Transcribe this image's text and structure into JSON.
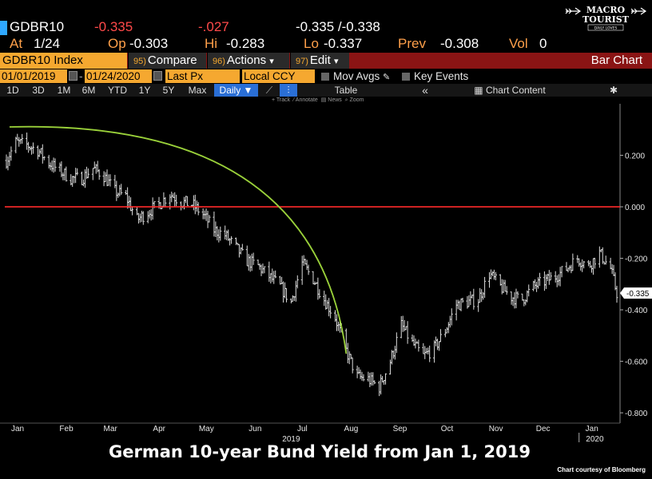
{
  "quote": {
    "ticker": "GDBR10",
    "last": "-0.335",
    "change": "-.027",
    "bid_ask": "-0.335 /-0.338",
    "at_label": "At",
    "at_value": "1/24",
    "open_label": "Op",
    "open_value": "-0.303",
    "high_label": "Hi",
    "high_value": "-0.283",
    "low_label": "Lo",
    "low_value": "-0.337",
    "prev_label": "Prev",
    "prev_value": "-0.308",
    "vol_label": "Vol",
    "vol_value": "0"
  },
  "logo": {
    "line1": "MACRO",
    "line2": "TOURIST",
    "line3": "DAILY LOVES"
  },
  "toolbar": {
    "security": "GDBR10 Index",
    "compare_num": "95)",
    "compare": "Compare",
    "actions_num": "96)",
    "actions": "Actions",
    "edit_num": "97)",
    "edit": "Edit",
    "chart_type": "Bar Chart",
    "caret": "▾"
  },
  "params": {
    "start_date": "01/01/2019",
    "end_date": "01/24/2020",
    "field": "Last Px",
    "currency": "Local CCY",
    "mov_avgs": "Mov Avgs",
    "key_events": "Key Events"
  },
  "ranges": {
    "d1": "1D",
    "d3": "3D",
    "m1": "1M",
    "m6": "6M",
    "ytd": "YTD",
    "y1": "1Y",
    "y5": "5Y",
    "max": "Max",
    "freq": "Daily ▼",
    "table": "Table",
    "chart_content": "Chart Content",
    "back": "«"
  },
  "tools": {
    "track": "Track",
    "annotate": "Annotate",
    "news": "News",
    "zoom": "Zoom"
  },
  "colors": {
    "accent_orange": "#f5a830",
    "toolbar_red": "#8a1414",
    "zero_line": "#ff2a2a",
    "arc": "#9ad13a",
    "bars": "#dddddd",
    "cyan": "#2fa8ff"
  },
  "chart_data": {
    "type": "bar",
    "subtype": "ohlc",
    "title": "German 10-year Bund Yield from Jan 1, 2019",
    "xlabel": "",
    "ylabel": "",
    "ylim": [
      -0.84,
      0.4
    ],
    "y_ticks": [
      "0.200",
      "0.000",
      "-0.200",
      "-0.400",
      "-0.600",
      "-0.800"
    ],
    "y_tick_values": [
      0.2,
      0.0,
      -0.2,
      -0.4,
      -0.6,
      -0.8
    ],
    "last_value_label": "-0.335",
    "last_value": -0.335,
    "x_month_labels": [
      "Jan",
      "Feb",
      "Mar",
      "Apr",
      "May",
      "Jun",
      "Jul",
      "Aug",
      "Sep",
      "Oct",
      "Nov",
      "Dec",
      "Jan"
    ],
    "x_month_starts": [
      "2019-01-01",
      "2019-02-01",
      "2019-03-01",
      "2019-04-01",
      "2019-05-01",
      "2019-06-01",
      "2019-07-01",
      "2019-08-01",
      "2019-09-01",
      "2019-10-01",
      "2019-11-01",
      "2019-12-01",
      "2020-01-01"
    ],
    "x_year_labels": [
      {
        "text": "2019",
        "date": "2019-07-01"
      },
      {
        "text": "2020",
        "date": "2020-01-10"
      }
    ],
    "x_range": [
      "2019-01-01",
      "2020-01-24"
    ],
    "reference_line": {
      "y": 0.0,
      "color": "#ff2a2a"
    },
    "trend_arc": {
      "from": {
        "date": "2019-01-03",
        "y": 0.31
      },
      "to": {
        "date": "2019-08-05",
        "y": -0.57
      },
      "color": "#9ad13a"
    },
    "series": [
      {
        "values": [
          [
            "2019-01-01",
            0.18
          ],
          [
            "2019-01-07",
            0.25
          ],
          [
            "2019-01-14",
            0.24
          ],
          [
            "2019-01-21",
            0.22
          ],
          [
            "2019-01-28",
            0.17
          ],
          [
            "2019-02-04",
            0.14
          ],
          [
            "2019-02-11",
            0.11
          ],
          [
            "2019-02-18",
            0.11
          ],
          [
            "2019-02-25",
            0.15
          ],
          [
            "2019-03-04",
            0.12
          ],
          [
            "2019-03-11",
            0.06
          ],
          [
            "2019-03-18",
            0.04
          ],
          [
            "2019-03-25",
            -0.05
          ],
          [
            "2019-04-01",
            -0.02
          ],
          [
            "2019-04-08",
            0.01
          ],
          [
            "2019-04-15",
            0.05
          ],
          [
            "2019-04-22",
            0.02
          ],
          [
            "2019-04-29",
            0.01
          ],
          [
            "2019-05-06",
            -0.03
          ],
          [
            "2019-05-13",
            -0.09
          ],
          [
            "2019-05-20",
            -0.11
          ],
          [
            "2019-05-27",
            -0.16
          ],
          [
            "2019-06-03",
            -0.21
          ],
          [
            "2019-06-10",
            -0.23
          ],
          [
            "2019-06-17",
            -0.27
          ],
          [
            "2019-06-24",
            -0.31
          ],
          [
            "2019-07-01",
            -0.37
          ],
          [
            "2019-07-08",
            -0.22
          ],
          [
            "2019-07-15",
            -0.28
          ],
          [
            "2019-07-22",
            -0.36
          ],
          [
            "2019-07-29",
            -0.43
          ],
          [
            "2019-08-05",
            -0.56
          ],
          [
            "2019-08-12",
            -0.66
          ],
          [
            "2019-08-19",
            -0.67
          ],
          [
            "2019-08-26",
            -0.7
          ],
          [
            "2019-09-02",
            -0.6
          ],
          [
            "2019-09-09",
            -0.46
          ],
          [
            "2019-09-16",
            -0.53
          ],
          [
            "2019-09-23",
            -0.58
          ],
          [
            "2019-09-30",
            -0.55
          ],
          [
            "2019-10-07",
            -0.48
          ],
          [
            "2019-10-14",
            -0.38
          ],
          [
            "2019-10-21",
            -0.37
          ],
          [
            "2019-10-28",
            -0.36
          ],
          [
            "2019-11-04",
            -0.26
          ],
          [
            "2019-11-11",
            -0.31
          ],
          [
            "2019-11-18",
            -0.35
          ],
          [
            "2019-11-25",
            -0.36
          ],
          [
            "2019-12-02",
            -0.31
          ],
          [
            "2019-12-09",
            -0.29
          ],
          [
            "2019-12-16",
            -0.27
          ],
          [
            "2019-12-23",
            -0.24
          ],
          [
            "2019-12-30",
            -0.2
          ],
          [
            "2020-01-06",
            -0.23
          ],
          [
            "2020-01-13",
            -0.18
          ],
          [
            "2020-01-20",
            -0.24
          ],
          [
            "2020-01-24",
            -0.335
          ]
        ]
      }
    ]
  },
  "caption": "German 10-year Bund Yield from Jan 1, 2019",
  "credit": "Chart courtesy of Bloomberg"
}
